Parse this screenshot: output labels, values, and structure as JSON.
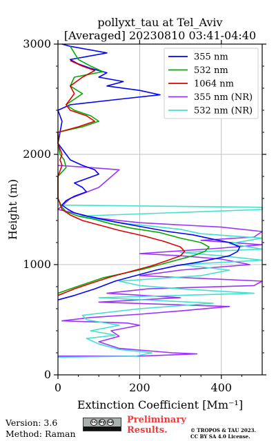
{
  "chart_data": {
    "type": "line",
    "title": "pollyxt_tau at Tel_Aviv",
    "subtitle": "[Averaged] 20230810 03:41-04:40",
    "xlabel": "Extinction Coefficient [Mm⁻¹]",
    "ylabel": "Height (m)",
    "xlim": [
      0,
      500
    ],
    "ylim": [
      0,
      3000
    ],
    "xticks": [
      0,
      200,
      400
    ],
    "yticks": [
      0,
      1000,
      2000,
      3000
    ],
    "grid": true,
    "legend_position": "top-right",
    "series": [
      {
        "name": "355 nm",
        "color": "#0000ff",
        "points": [
          [
            0,
            680
          ],
          [
            40,
            720
          ],
          [
            90,
            780
          ],
          [
            140,
            850
          ],
          [
            190,
            900
          ],
          [
            240,
            950
          ],
          [
            290,
            990
          ],
          [
            340,
            1020
          ],
          [
            380,
            1050
          ],
          [
            420,
            1080
          ],
          [
            440,
            1120
          ],
          [
            445,
            1160
          ],
          [
            420,
            1200
          ],
          [
            380,
            1230
          ],
          [
            330,
            1270
          ],
          [
            270,
            1300
          ],
          [
            210,
            1340
          ],
          [
            150,
            1380
          ],
          [
            110,
            1410
          ],
          [
            70,
            1440
          ],
          [
            40,
            1470
          ],
          [
            25,
            1500
          ],
          [
            10,
            1540
          ],
          [
            20,
            1580
          ],
          [
            40,
            1620
          ],
          [
            70,
            1660
          ],
          [
            60,
            1700
          ],
          [
            40,
            1740
          ],
          [
            70,
            1780
          ],
          [
            100,
            1820
          ],
          [
            90,
            1860
          ],
          [
            60,
            1900
          ],
          [
            30,
            1950
          ],
          [
            20,
            2000
          ],
          [
            10,
            2050
          ],
          [
            0,
            2100
          ],
          [
            5,
            2200
          ],
          [
            10,
            2300
          ],
          [
            0,
            2400
          ],
          [
            30,
            2450
          ],
          [
            150,
            2500
          ],
          [
            250,
            2540
          ],
          [
            200,
            2580
          ],
          [
            120,
            2620
          ],
          [
            160,
            2660
          ],
          [
            100,
            2700
          ],
          [
            120,
            2740
          ],
          [
            80,
            2780
          ],
          [
            50,
            2820
          ],
          [
            30,
            2860
          ],
          [
            120,
            2920
          ],
          [
            30,
            2980
          ],
          [
            10,
            3000
          ]
        ]
      },
      {
        "name": "532 nm",
        "color": "#00aa00",
        "points": [
          [
            0,
            740
          ],
          [
            30,
            780
          ],
          [
            70,
            830
          ],
          [
            110,
            880
          ],
          [
            160,
            920
          ],
          [
            210,
            960
          ],
          [
            250,
            1000
          ],
          [
            290,
            1040
          ],
          [
            330,
            1080
          ],
          [
            360,
            1120
          ],
          [
            370,
            1160
          ],
          [
            350,
            1200
          ],
          [
            300,
            1240
          ],
          [
            250,
            1290
          ],
          [
            180,
            1330
          ],
          [
            130,
            1370
          ],
          [
            90,
            1410
          ],
          [
            50,
            1440
          ],
          [
            20,
            1480
          ],
          [
            10,
            1520
          ],
          [
            5,
            1560
          ],
          [
            0,
            1600
          ],
          [
            0,
            1800
          ],
          [
            20,
            1880
          ],
          [
            15,
            1950
          ],
          [
            5,
            2000
          ],
          [
            0,
            2100
          ],
          [
            0,
            2200
          ],
          [
            60,
            2250
          ],
          [
            100,
            2300
          ],
          [
            80,
            2350
          ],
          [
            40,
            2400
          ],
          [
            20,
            2450
          ],
          [
            60,
            2550
          ],
          [
            30,
            2620
          ],
          [
            40,
            2700
          ],
          [
            110,
            2750
          ],
          [
            80,
            2800
          ],
          [
            50,
            2860
          ],
          [
            40,
            2920
          ],
          [
            30,
            2980
          ]
        ]
      },
      {
        "name": "1064 nm",
        "color": "#dd0000",
        "points": [
          [
            0,
            720
          ],
          [
            40,
            780
          ],
          [
            80,
            830
          ],
          [
            130,
            890
          ],
          [
            180,
            940
          ],
          [
            230,
            990
          ],
          [
            270,
            1040
          ],
          [
            300,
            1080
          ],
          [
            310,
            1120
          ],
          [
            300,
            1160
          ],
          [
            260,
            1210
          ],
          [
            210,
            1260
          ],
          [
            150,
            1310
          ],
          [
            100,
            1360
          ],
          [
            60,
            1400
          ],
          [
            30,
            1450
          ],
          [
            10,
            1500
          ],
          [
            5,
            1550
          ],
          [
            0,
            1600
          ],
          [
            0,
            1800
          ],
          [
            10,
            1900
          ],
          [
            5,
            1950
          ],
          [
            10,
            2000
          ],
          [
            0,
            2100
          ],
          [
            0,
            2200
          ],
          [
            50,
            2250
          ],
          [
            90,
            2300
          ],
          [
            70,
            2350
          ],
          [
            30,
            2400
          ],
          [
            20,
            2450
          ],
          [
            40,
            2550
          ],
          [
            30,
            2620
          ],
          [
            60,
            2700
          ],
          [
            90,
            2760
          ],
          [
            60,
            2800
          ],
          [
            30,
            2850
          ]
        ]
      },
      {
        "name": "355 nm (NR)",
        "color": "#9b30ff",
        "points": [
          [
            0,
            170
          ],
          [
            200,
            170
          ],
          [
            340,
            190
          ],
          [
            280,
            200
          ],
          [
            150,
            240
          ],
          [
            100,
            300
          ],
          [
            150,
            350
          ],
          [
            130,
            400
          ],
          [
            200,
            450
          ],
          [
            170,
            470
          ],
          [
            10,
            490
          ],
          [
            80,
            520
          ],
          [
            200,
            550
          ],
          [
            300,
            580
          ],
          [
            420,
            620
          ],
          [
            100,
            660
          ],
          [
            300,
            700
          ],
          [
            120,
            740
          ],
          [
            220,
            780
          ],
          [
            480,
            810
          ],
          [
            500,
            850
          ],
          [
            200,
            900
          ],
          [
            300,
            950
          ],
          [
            470,
            1000
          ],
          [
            400,
            1050
          ],
          [
            300,
            1080
          ],
          [
            200,
            1100
          ],
          [
            400,
            1150
          ],
          [
            500,
            1180
          ],
          [
            350,
            1220
          ],
          [
            480,
            1250
          ],
          [
            500,
            1300
          ],
          [
            400,
            1340
          ],
          [
            200,
            1380
          ],
          [
            100,
            1420
          ],
          [
            0,
            1500
          ],
          [
            30,
            1600
          ],
          [
            100,
            1700
          ],
          [
            150,
            1860
          ],
          [
            80,
            1880
          ],
          [
            0,
            1900
          ]
        ]
      },
      {
        "name": "532 nm (NR)",
        "color": "#40e0d0",
        "points": [
          [
            0,
            160
          ],
          [
            190,
            170
          ],
          [
            230,
            200
          ],
          [
            150,
            230
          ],
          [
            100,
            280
          ],
          [
            70,
            330
          ],
          [
            140,
            360
          ],
          [
            80,
            400
          ],
          [
            150,
            450
          ],
          [
            70,
            500
          ],
          [
            60,
            540
          ],
          [
            200,
            600
          ],
          [
            380,
            650
          ],
          [
            100,
            700
          ],
          [
            480,
            740
          ],
          [
            300,
            780
          ],
          [
            200,
            810
          ],
          [
            150,
            850
          ],
          [
            350,
            900
          ],
          [
            420,
            950
          ],
          [
            300,
            1000
          ],
          [
            500,
            1040
          ],
          [
            400,
            1080
          ],
          [
            300,
            1110
          ],
          [
            500,
            1140
          ],
          [
            420,
            1190
          ],
          [
            500,
            1240
          ],
          [
            350,
            1280
          ],
          [
            300,
            1320
          ],
          [
            150,
            1380
          ],
          [
            50,
            1440
          ],
          [
            500,
            1500
          ],
          [
            500,
            1520
          ],
          [
            0,
            1540
          ]
        ]
      }
    ]
  },
  "footer": {
    "version": "Version: 3.6",
    "method": "Method: Raman",
    "preliminary_line1": "Preliminary",
    "preliminary_line2": "Results.",
    "copyright_line1": "© TROPOS & TAU 2023.",
    "copyright_line2": "CC BY SA 4.0 License.",
    "license_badge": [
      "cc",
      "by",
      "sa"
    ]
  }
}
